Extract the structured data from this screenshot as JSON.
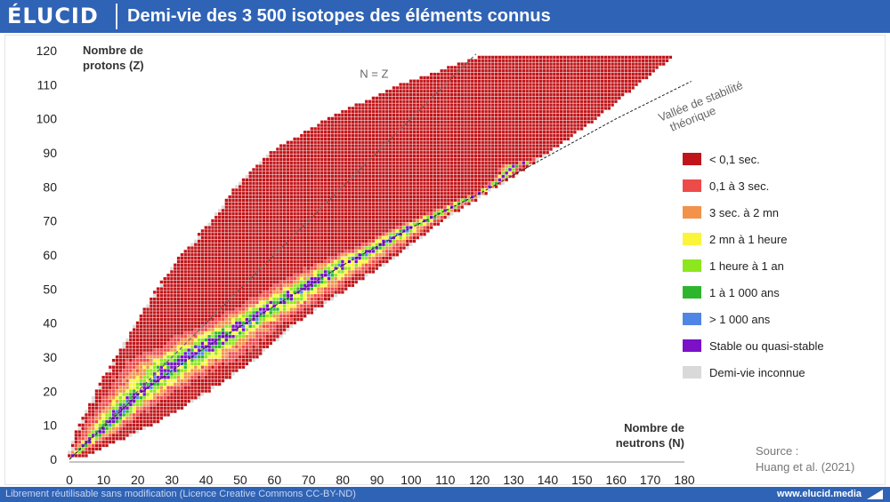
{
  "header": {
    "logo": "ÉLUCID",
    "title": "Demi-vie des 3 500 isotopes des éléments connus"
  },
  "footer": {
    "license": "Librement réutilisable sans modification (Licence Creative Commons CC-BY-ND)",
    "website": "www.elucid.media"
  },
  "source": {
    "line1": "Source :",
    "line2": "Huang et al. (2021)"
  },
  "chart_data": {
    "type": "heatmap",
    "title": "Demi-vie des 3 500 isotopes des éléments connus",
    "xlabel_line1": "Nombre de",
    "xlabel_line2": "neutrons (N)",
    "ylabel_line1": "Nombre de",
    "ylabel_line2": "protons (Z)",
    "xlim": [
      0,
      180
    ],
    "ylim": [
      0,
      120
    ],
    "x_ticks": [
      "0",
      "10",
      "20",
      "30",
      "40",
      "50",
      "60",
      "70",
      "80",
      "90",
      "100",
      "110",
      "120",
      "130",
      "140",
      "150",
      "160",
      "170",
      "180"
    ],
    "y_ticks": [
      "0",
      "10",
      "20",
      "30",
      "40",
      "50",
      "60",
      "70",
      "80",
      "90",
      "100",
      "110",
      "120"
    ],
    "reference_lines": [
      {
        "label": "N = Z",
        "points": [
          [
            0,
            0
          ],
          [
            119,
            119
          ]
        ]
      },
      {
        "label_line1": "Vallée de stabilité",
        "label_line2": "théorique",
        "points": [
          [
            0,
            0
          ],
          [
            20,
            19
          ],
          [
            40,
            33
          ],
          [
            60,
            45
          ],
          [
            80,
            57
          ],
          [
            100,
            68
          ],
          [
            120,
            78
          ],
          [
            140,
            89
          ],
          [
            160,
            100
          ],
          [
            182,
            111
          ]
        ]
      }
    ],
    "legend": [
      {
        "label": "< 0,1 sec.",
        "color": "#c0161a"
      },
      {
        "label": "0,1 à 3 sec.",
        "color": "#ed4a4a"
      },
      {
        "label": "3 sec. à 2 mn",
        "color": "#f3924a"
      },
      {
        "label": "2 mn à 1 heure",
        "color": "#faf53a"
      },
      {
        "label": "1 heure à 1 an",
        "color": "#8ee61e"
      },
      {
        "label": "1 à 1 000 ans",
        "color": "#2eb52e"
      },
      {
        "label": "> 1 000 ans",
        "color": "#4f86e6"
      },
      {
        "label": "Stable ou quasi-stable",
        "color": "#7a10c8"
      },
      {
        "label": "Demi-vie inconnue",
        "color": "#d9d9d9"
      }
    ],
    "stability_valley": [
      [
        0,
        0
      ],
      [
        10,
        9
      ],
      [
        20,
        19
      ],
      [
        30,
        27
      ],
      [
        40,
        33
      ],
      [
        50,
        39
      ],
      [
        60,
        45
      ],
      [
        70,
        51
      ],
      [
        80,
        57
      ],
      [
        90,
        62
      ],
      [
        100,
        68
      ],
      [
        110,
        73
      ],
      [
        120,
        78
      ],
      [
        126,
        82
      ],
      [
        130,
        86
      ],
      [
        140,
        89
      ],
      [
        150,
        94
      ],
      [
        160,
        100
      ],
      [
        170,
        105
      ],
      [
        177,
        110
      ]
    ],
    "extent": {
      "min_N_by_Z": [
        [
          1,
          0
        ],
        [
          10,
          3
        ],
        [
          20,
          8
        ],
        [
          30,
          14
        ],
        [
          40,
          20
        ],
        [
          50,
          26
        ],
        [
          60,
          33
        ],
        [
          70,
          42
        ],
        [
          80,
          49
        ],
        [
          90,
          59
        ],
        [
          100,
          76
        ],
        [
          110,
          97
        ],
        [
          118,
          120
        ]
      ],
      "max_N_by_Z": [
        [
          1,
          5
        ],
        [
          10,
          24
        ],
        [
          20,
          41
        ],
        [
          30,
          55
        ],
        [
          40,
          66
        ],
        [
          50,
          81
        ],
        [
          60,
          96
        ],
        [
          70,
          109
        ],
        [
          80,
          125
        ],
        [
          90,
          140
        ],
        [
          100,
          154
        ],
        [
          110,
          166
        ],
        [
          118,
          176
        ]
      ]
    }
  }
}
